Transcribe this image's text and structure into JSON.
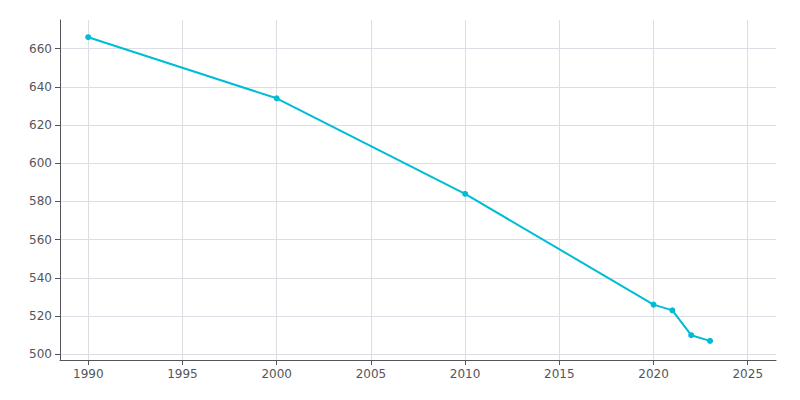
{
  "chart_data": {
    "type": "line",
    "x": [
      1990,
      2000,
      2010,
      2020,
      2021,
      2022,
      2023
    ],
    "values": [
      666,
      634,
      584,
      526,
      523,
      510,
      507
    ],
    "color": "#00bcd4",
    "marker": "circle",
    "xlim": [
      1988.5,
      2026.5
    ],
    "ylim": [
      497,
      675
    ],
    "xticks": [
      1990,
      1995,
      2000,
      2005,
      2010,
      2015,
      2020,
      2025
    ],
    "yticks": [
      500,
      520,
      540,
      560,
      580,
      600,
      620,
      640,
      660
    ],
    "grid": true
  }
}
